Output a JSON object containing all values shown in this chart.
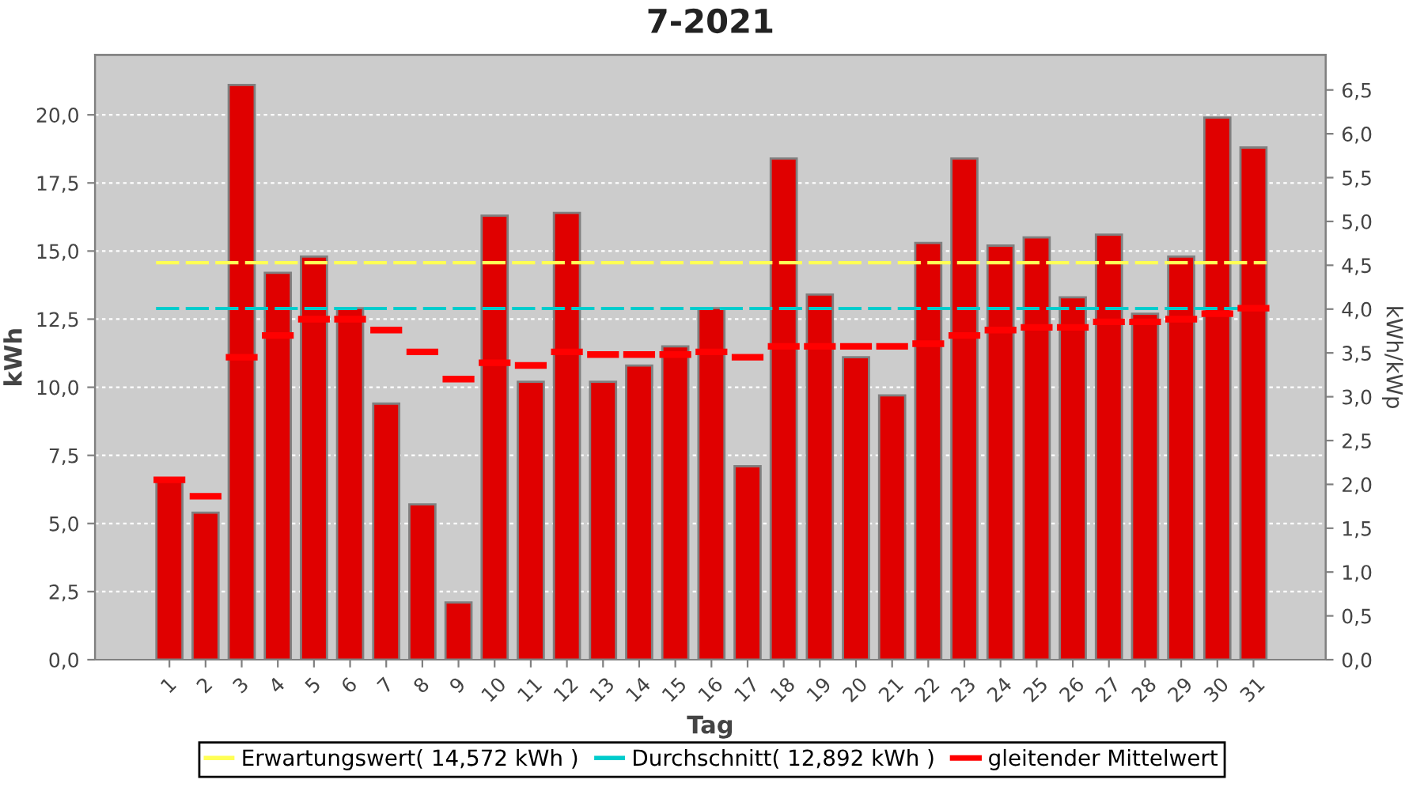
{
  "chart_data": {
    "type": "bar",
    "title": "7-2021",
    "xlabel": "Tag",
    "ylabel": "kWh",
    "y2label": "kWh/kWp",
    "categories": [
      "1",
      "2",
      "3",
      "4",
      "5",
      "6",
      "7",
      "8",
      "9",
      "10",
      "11",
      "12",
      "13",
      "14",
      "15",
      "16",
      "17",
      "18",
      "19",
      "20",
      "21",
      "22",
      "23",
      "24",
      "25",
      "26",
      "27",
      "28",
      "29",
      "30",
      "31"
    ],
    "series": [
      {
        "color": "#e00000",
        "values": [
          6.6,
          5.4,
          21.1,
          14.2,
          14.8,
          12.9,
          9.4,
          5.7,
          2.1,
          16.3,
          10.2,
          16.4,
          10.2,
          10.8,
          11.5,
          12.9,
          7.1,
          18.4,
          13.4,
          11.1,
          9.7,
          15.3,
          18.4,
          15.2,
          15.5,
          13.3,
          15.6,
          12.7,
          14.8,
          19.9,
          18.8
        ]
      },
      {
        "type": "step",
        "name": "gleitender Mittelwert",
        "color": "#ff0000",
        "values": [
          6.6,
          6.0,
          11.1,
          11.9,
          12.5,
          12.5,
          12.1,
          11.3,
          10.3,
          10.9,
          10.8,
          11.3,
          11.2,
          11.2,
          11.2,
          11.3,
          11.1,
          11.5,
          11.5,
          11.5,
          11.5,
          11.6,
          11.9,
          12.1,
          12.2,
          12.2,
          12.4,
          12.4,
          12.5,
          12.7,
          12.9
        ]
      }
    ],
    "ref_lines": [
      {
        "axis": "y",
        "value": 14.572,
        "label": "Erwartungswert( 14,572 kWh )",
        "color": "#ffff55",
        "line_style": "dashed"
      },
      {
        "axis": "y",
        "value": 12.892,
        "label": "Durchschnitt( 12,892 kWh )",
        "color": "#00cccc",
        "line_style": "dashed"
      }
    ],
    "ylim": [
      0,
      22.2
    ],
    "yticks": [
      {
        "value": 0,
        "label": "0,0"
      },
      {
        "value": 2.5,
        "label": "2,5"
      },
      {
        "value": 5,
        "label": "5,0"
      },
      {
        "value": 7.5,
        "label": "7,5"
      },
      {
        "value": 10,
        "label": "10,0"
      },
      {
        "value": 12.5,
        "label": "12,5"
      },
      {
        "value": 15,
        "label": "15,0"
      },
      {
        "value": 17.5,
        "label": "17,5"
      },
      {
        "value": 20,
        "label": "20,0"
      }
    ],
    "y2lim": [
      0,
      6.9
    ],
    "y2ticks": [
      {
        "value": 0,
        "label": "0,0"
      },
      {
        "value": 0.5,
        "label": "0,5"
      },
      {
        "value": 1,
        "label": "1,0"
      },
      {
        "value": 1.5,
        "label": "1,5"
      },
      {
        "value": 2,
        "label": "2,0"
      },
      {
        "value": 2.5,
        "label": "2,5"
      },
      {
        "value": 3,
        "label": "3,0"
      },
      {
        "value": 3.5,
        "label": "3,5"
      },
      {
        "value": 4,
        "label": "4,0"
      },
      {
        "value": 4.5,
        "label": "4,5"
      },
      {
        "value": 5,
        "label": "5,0"
      },
      {
        "value": 5.5,
        "label": "5,5"
      },
      {
        "value": 6,
        "label": "6,0"
      },
      {
        "value": 6.5,
        "label": "6,5"
      }
    ],
    "grid": "y",
    "legend": "bottom"
  }
}
